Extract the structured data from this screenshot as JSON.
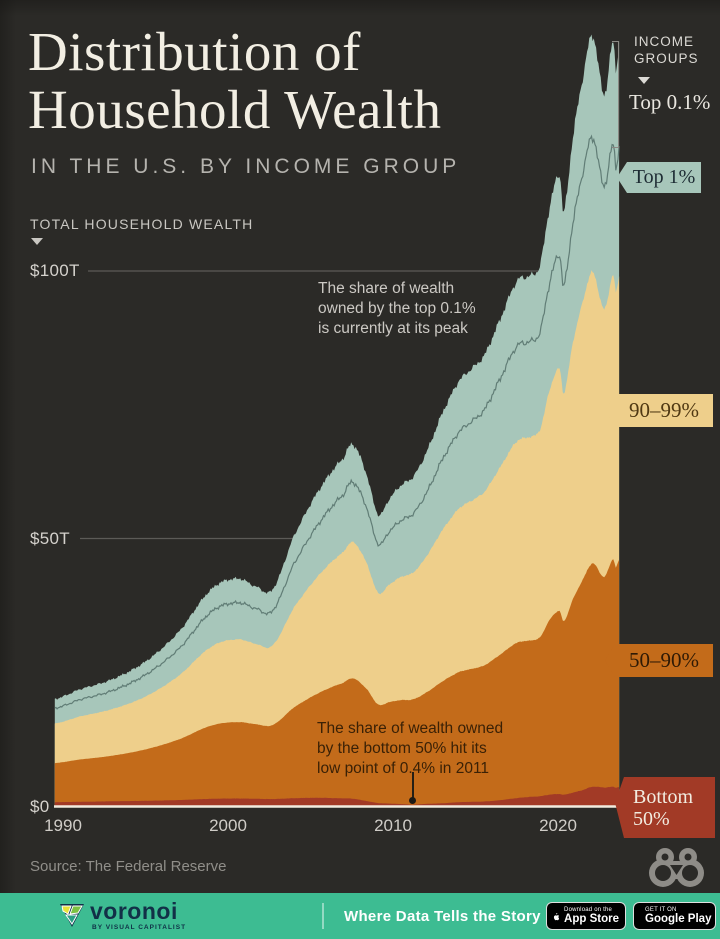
{
  "header": {
    "title_line1": "Distribution of",
    "title_line2": "Household Wealth",
    "subtitle": "IN THE U.S. BY INCOME GROUP"
  },
  "chart": {
    "section_label": "TOTAL HOUSEHOLD WEALTH",
    "legend": {
      "heading": "INCOME\nGROUPS",
      "top01_label": "Top 0.1%",
      "chips": [
        {
          "label": "Top 1%",
          "bg": "#a7c6ba",
          "fg": "#1d2b33"
        },
        {
          "label": "90–99%",
          "bg": "#eecf8b",
          "fg": "#503913"
        },
        {
          "label": "50–90%",
          "bg": "#c36b1a",
          "fg": "#2f1a05"
        },
        {
          "label": "Bottom 50%",
          "bg": "#a23a26",
          "fg": "#f2ece0"
        }
      ]
    },
    "annotations": {
      "top01": "The share of wealth\nowned by the top 0.1%\nis currently at its peak",
      "bottom50": "The share of wealth owned\nby the bottom 50% hit its\nlow point of 0.4% in 2011"
    },
    "source": "Source: The Federal Reserve"
  },
  "chart_data": {
    "type": "area",
    "stacked": true,
    "title": "Distribution of Household Wealth in the U.S. by Income Group",
    "unit": "trillions of USD",
    "x_range": [
      1989.5,
      2023.7
    ],
    "ylim": [
      0,
      150
    ],
    "grid": "horizontal",
    "legend_position": "right",
    "x_tick_labels": [
      "1990",
      "2000",
      "2010",
      "2020"
    ],
    "x_tick_values": [
      1990,
      2000,
      2010,
      2020
    ],
    "y_tick_labels": [
      "$0",
      "$50T",
      "$100T"
    ],
    "y_tick_values": [
      0,
      50,
      100
    ],
    "years": [
      1989.5,
      1991,
      1993,
      1995,
      1997,
      1999,
      2000.6,
      2001.7,
      2002.7,
      2004,
      2005.5,
      2007,
      2007.6,
      2008.4,
      2009.1,
      2009.8,
      2010.5,
      2011.2,
      2012,
      2013,
      2014,
      2015.5,
      2016.5,
      2017.5,
      2018.2,
      2018.9,
      2019.5,
      2020.1,
      2020.35,
      2020.9,
      2021.5,
      2022.1,
      2022.8,
      2023.35,
      2023.5,
      2023.7
    ],
    "series": [
      {
        "name": "Bottom 50%",
        "color": "#a23a26",
        "values": [
          0.72,
          0.78,
          0.88,
          0.97,
          1.11,
          1.34,
          1.4,
          1.35,
          1.3,
          1.46,
          1.53,
          1.43,
          1.35,
          0.93,
          0.55,
          0.46,
          0.36,
          0.25,
          0.4,
          0.51,
          0.72,
          0.84,
          1.09,
          1.47,
          1.68,
          1.82,
          2.13,
          2.24,
          2.11,
          2.5,
          2.99,
          3.6,
          3.46,
          3.58,
          3.44,
          3.56
        ]
      },
      {
        "name": "50–90%",
        "color": "#c36b1a",
        "values": [
          7.3,
          7.91,
          8.53,
          9.61,
          11.31,
          13.69,
          14.28,
          13.94,
          13.85,
          16.97,
          19.59,
          21.58,
          22.48,
          20.96,
          18.42,
          18.98,
          19.44,
          19.68,
          20.79,
          22.79,
          24.33,
          25.37,
          27.21,
          29.01,
          29.21,
          29.69,
          32.7,
          34.22,
          32.41,
          36.13,
          39.3,
          41.76,
          39.37,
          42.61,
          41.11,
          42.47
        ]
      },
      {
        "name": "90–99%",
        "color": "#eecf8b",
        "values": [
          7.4,
          8.04,
          8.72,
          9.88,
          11.9,
          14.74,
          15.47,
          15.01,
          14.9,
          18.69,
          22.01,
          24.44,
          25.45,
          23.56,
          20.87,
          22.02,
          23.04,
          23.68,
          25.41,
          28.3,
          30.61,
          32.34,
          35.04,
          37.63,
          38.02,
          38.78,
          43.01,
          45.31,
          42.62,
          48.0,
          51.95,
          54.43,
          50.01,
          53.2,
          51.29,
          53.01
        ]
      },
      {
        "name": "Top 1%",
        "color": "#a7c6ba",
        "values": [
          4.58,
          5.07,
          5.57,
          6.54,
          8.18,
          10.73,
          11.35,
          10.7,
          10.45,
          13.38,
          15.87,
          17.55,
          18.22,
          16.55,
          14.66,
          16.04,
          17.16,
          17.89,
          19.4,
          21.9,
          23.84,
          25.45,
          27.66,
          29.89,
          30.09,
          30.71,
          34.16,
          36.23,
          33.86,
          38.38,
          41.76,
          44.21,
          40.16,
          43.61,
          41.67,
          43.47
        ]
      }
    ],
    "line_series": {
      "name": "Top 0.1%",
      "color": "#617d76",
      "values": [
        1.72,
        1.92,
        2.13,
        2.48,
        3.19,
        4.21,
        4.51,
        4.1,
        3.97,
        5.2,
        6.2,
        6.83,
        7.02,
        6.2,
        5.5,
        6.1,
        6.6,
        6.89,
        7.59,
        8.67,
        9.54,
        10.16,
        11.1,
        12.15,
        12.28,
        12.52,
        14.11,
        14.99,
        13.76,
        16.0,
        17.68,
        19.01,
        17.02,
        19.16,
        18.15,
        19.67
      ]
    },
    "baseline_color": "#f2ecdf",
    "gridline_color": "#5c5b57",
    "annotation_low_point": {
      "year": 2011.2,
      "share": "0.4%"
    }
  },
  "footer": {
    "brand": "voronoi",
    "byline": "BY VISUAL CAPITALIST",
    "tagline": "Where Data Tells the Story",
    "appstore_line1": "Download on the",
    "appstore_line2": "App Store",
    "gplay_line1": "GET IT ON",
    "gplay_line2": "Google Play",
    "bar_color": "#3dbc92"
  }
}
